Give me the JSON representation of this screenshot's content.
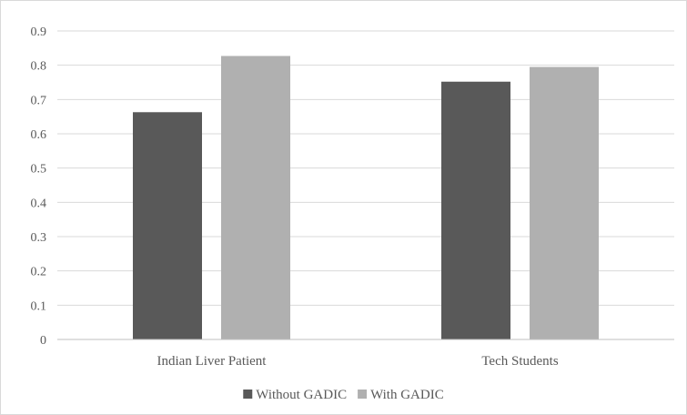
{
  "chart_data": {
    "type": "bar",
    "categories": [
      "Indian Liver Patient",
      "Tech Students"
    ],
    "series": [
      {
        "name": "Without GADIC",
        "values": [
          0.663,
          0.752
        ],
        "color": "#595959"
      },
      {
        "name": "With GADIC",
        "values": [
          0.827,
          0.795
        ],
        "color": "#b0b0b0"
      }
    ],
    "ylim": [
      0,
      0.9
    ],
    "yticks": [
      "0",
      "0.1",
      "0.2",
      "0.3",
      "0.4",
      "0.5",
      "0.6",
      "0.7",
      "0.8",
      "0.9"
    ],
    "grid": true,
    "legend_position": "bottom",
    "gridline_color": "#d9d9d9",
    "axis_color": "#bfbfbf"
  }
}
